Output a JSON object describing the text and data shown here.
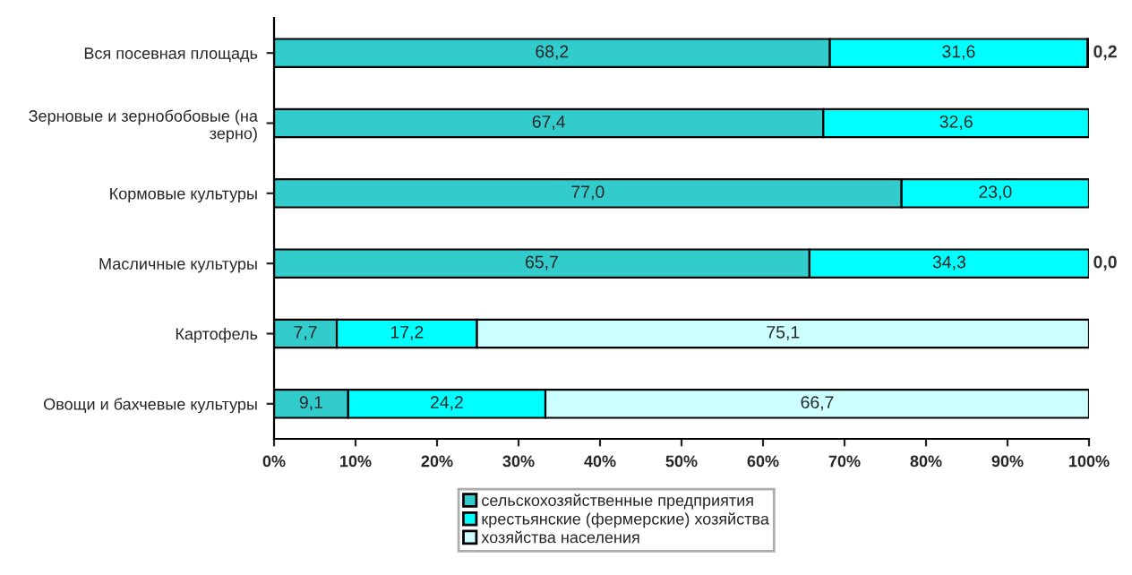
{
  "chart_data": {
    "type": "bar",
    "orientation": "horizontal",
    "stacked": true,
    "categories": [
      "Вся посевная площадь",
      "Зерновые и зернобобовые (на зерно)",
      "Кормовые культуры",
      "Масличные культуры",
      "Картофель",
      "Овощи и бахчевые культуры"
    ],
    "series": [
      {
        "name": "сельскохозяйственные предприятия",
        "color": "#33cccc",
        "values": [
          68.2,
          67.4,
          77.0,
          65.7,
          7.7,
          9.1
        ],
        "value_labels": [
          "68,2",
          "67,4",
          "77,0",
          "65,7",
          "7,7",
          "9,1"
        ]
      },
      {
        "name": "крестьянские (фермерские) хозяйства",
        "color": "#00ffff",
        "values": [
          31.6,
          32.6,
          23.0,
          34.3,
          17.2,
          24.2
        ],
        "value_labels": [
          "31,6",
          "32,6",
          "23,0",
          "34,3",
          "17,2",
          "24,2"
        ]
      },
      {
        "name": "хозяйства населения",
        "color": "#ccffff",
        "values": [
          0.2,
          null,
          null,
          0.0,
          75.1,
          66.7
        ],
        "value_labels": [
          "0,2",
          null,
          null,
          "0,0",
          "75,1",
          "66,7"
        ]
      }
    ],
    "xlim": [
      0,
      100
    ],
    "xticks": [
      {
        "value": 0,
        "label": "0%"
      },
      {
        "value": 10,
        "label": "10%"
      },
      {
        "value": 20,
        "label": "20%"
      },
      {
        "value": 30,
        "label": "30%"
      },
      {
        "value": 40,
        "label": "40%"
      },
      {
        "value": 50,
        "label": "50%"
      },
      {
        "value": 60,
        "label": "60%"
      },
      {
        "value": 70,
        "label": "70%"
      },
      {
        "value": 80,
        "label": "80%"
      },
      {
        "value": 90,
        "label": "90%"
      },
      {
        "value": 100,
        "label": "100%"
      }
    ],
    "legend": "bottom",
    "grid": false
  }
}
